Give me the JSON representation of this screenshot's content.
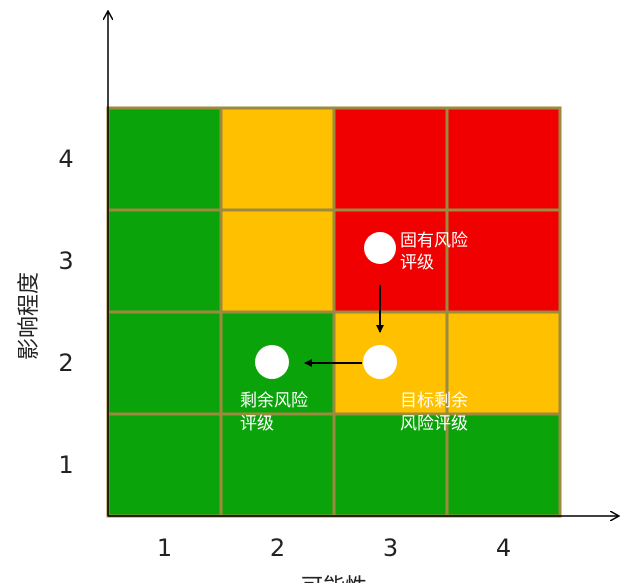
{
  "y_axis": {
    "label": "影响程度",
    "ticks": [
      "1",
      "2",
      "3",
      "4"
    ]
  },
  "x_axis": {
    "label": "可能性",
    "ticks": [
      "1",
      "2",
      "3",
      "4"
    ]
  },
  "points": [
    {
      "label": [
        "固有风险",
        "评级"
      ]
    },
    {
      "label": [
        "目标剩余",
        "风险评级"
      ]
    },
    {
      "label": [
        "剩余风险",
        "评级"
      ]
    }
  ]
}
